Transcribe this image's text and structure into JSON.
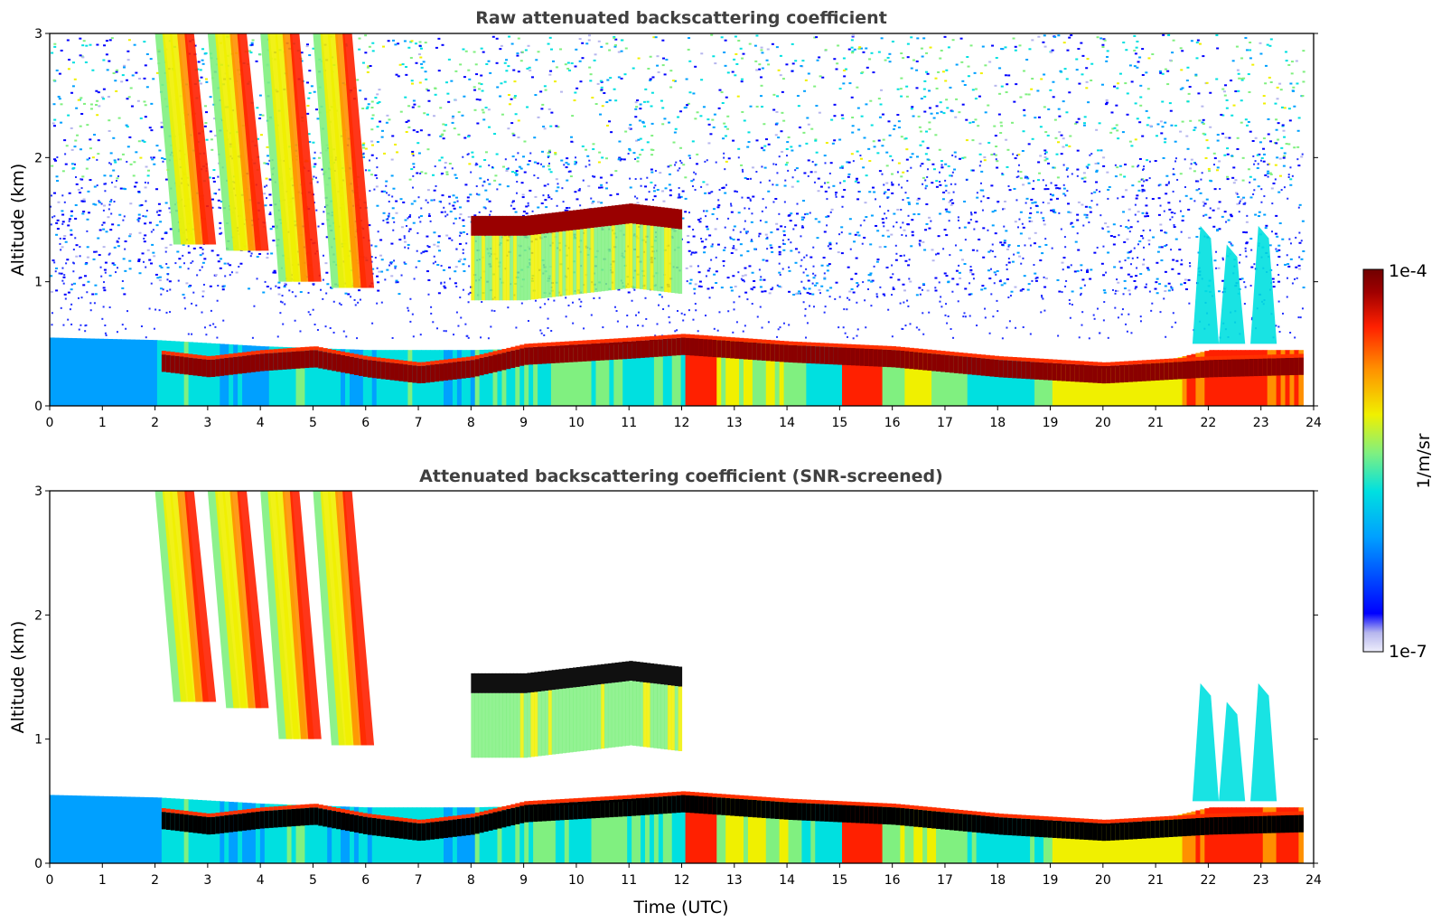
{
  "chart_data": [
    {
      "type": "heatmap",
      "title": "Raw attenuated backscattering coefficient",
      "xlabel": "",
      "ylabel": "Altitude (km)",
      "xlim": [
        0,
        24
      ],
      "ylim": [
        0,
        3
      ],
      "x_ticks": [
        "0",
        "1",
        "2",
        "3",
        "4",
        "5",
        "6",
        "7",
        "8",
        "9",
        "10",
        "11",
        "12",
        "13",
        "14",
        "15",
        "16",
        "17",
        "18",
        "19",
        "20",
        "21",
        "22",
        "23",
        "24"
      ],
      "y_ticks": [
        "0",
        "1",
        "2",
        "3"
      ],
      "boundary_layer_top_km": [
        [
          0,
          0.55
        ],
        [
          2,
          0.53
        ],
        [
          4,
          0.48
        ],
        [
          6,
          0.45
        ],
        [
          8,
          0.45
        ],
        [
          10,
          0.47
        ],
        [
          11,
          0.5
        ],
        [
          12,
          0.55
        ],
        [
          14,
          0.5
        ],
        [
          16,
          0.45
        ],
        [
          18,
          0.38
        ],
        [
          20,
          0.3
        ],
        [
          21,
          0.35
        ],
        [
          22,
          0.45
        ],
        [
          23.8,
          0.45
        ]
      ],
      "aerosol_layer_km": [
        [
          2,
          0.35
        ],
        [
          3,
          0.3
        ],
        [
          4,
          0.35
        ],
        [
          5,
          0.38
        ],
        [
          6,
          0.3
        ],
        [
          7,
          0.25
        ],
        [
          8,
          0.3
        ],
        [
          9,
          0.4
        ],
        [
          11,
          0.45
        ],
        [
          12,
          0.48
        ],
        [
          14,
          0.42
        ],
        [
          16,
          0.38
        ],
        [
          18,
          0.3
        ],
        [
          20,
          0.25
        ],
        [
          22,
          0.3
        ],
        [
          23.8,
          0.32
        ]
      ],
      "cloud_layer_km": [
        [
          8,
          1.45
        ],
        [
          9,
          1.45
        ],
        [
          10,
          1.5
        ],
        [
          11,
          1.55
        ],
        [
          12,
          1.5
        ]
      ],
      "fall_streaks_h": [
        [
          2,
          3.0,
          1.3
        ],
        [
          3,
          3.0,
          1.25
        ],
        [
          4,
          3.0,
          1.0
        ],
        [
          5,
          3.0,
          0.95
        ]
      ],
      "noisy_region": true,
      "screened": false
    },
    {
      "type": "heatmap",
      "title": "Attenuated backscattering coefficient (SNR-screened)",
      "xlabel": "Time (UTC)",
      "ylabel": "Altitude (km)",
      "xlim": [
        0,
        24
      ],
      "ylim": [
        0,
        3
      ],
      "x_ticks": [
        "0",
        "1",
        "2",
        "3",
        "4",
        "5",
        "6",
        "7",
        "8",
        "9",
        "10",
        "11",
        "12",
        "13",
        "14",
        "15",
        "16",
        "17",
        "18",
        "19",
        "20",
        "21",
        "22",
        "23",
        "24"
      ],
      "y_ticks": [
        "0",
        "1",
        "2",
        "3"
      ],
      "noisy_region": false,
      "screened": true
    }
  ],
  "colorbar": {
    "label": "1/m/sr",
    "max_label": "1e-4",
    "min_label": "1e-7",
    "scale": "log",
    "colors": [
      "#eeeefb",
      "#b6b6ee",
      "#0000ff",
      "#00a0ff",
      "#00e0e0",
      "#80f080",
      "#f0f000",
      "#ff9000",
      "#ff2000",
      "#a00000",
      "#700000"
    ]
  }
}
